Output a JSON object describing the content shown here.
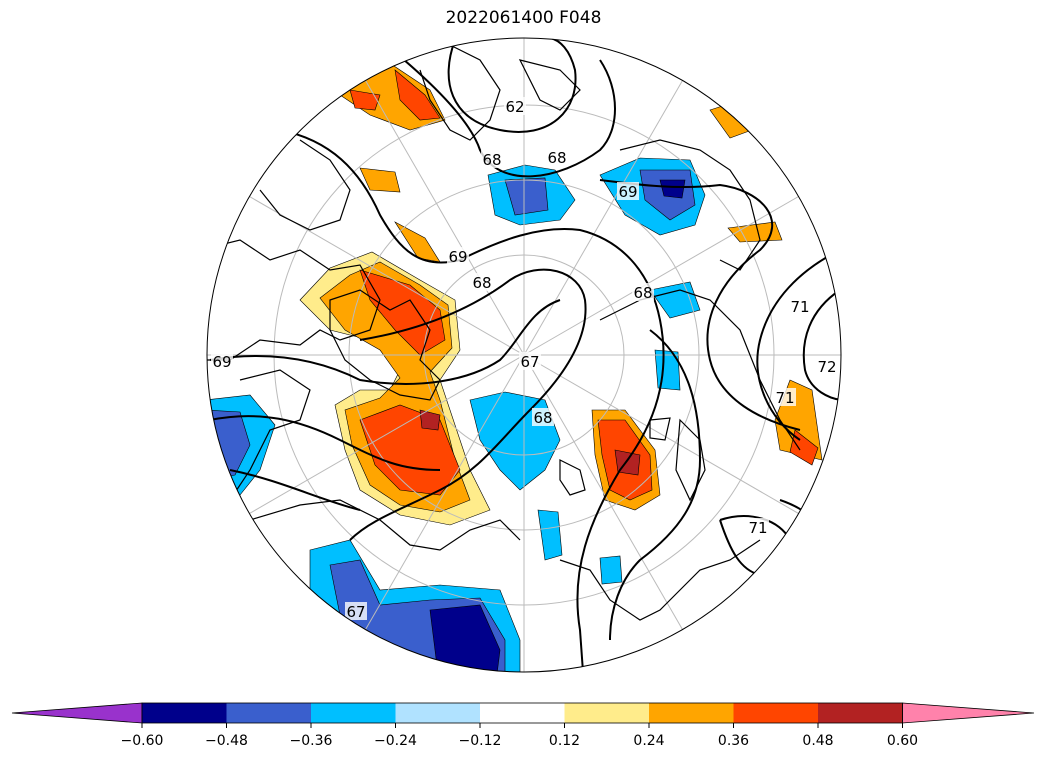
{
  "title": "2022061400 F048",
  "colorbar": {
    "orientation": "horizontal",
    "extend": "both",
    "levels": [
      -0.6,
      -0.48,
      -0.36,
      -0.24,
      -0.12,
      0.12,
      0.24,
      0.36,
      0.48,
      0.6
    ],
    "tick_labels": [
      "−0.60",
      "−0.48",
      "−0.36",
      "−0.24",
      "−0.12",
      "0.12",
      "0.24",
      "0.36",
      "0.48",
      "0.60"
    ],
    "colors": [
      "#9932CC",
      "#00008B",
      "#3A5FCD",
      "#00BFFF",
      "#B0E2FF",
      "#FFFFFF",
      "#FFEC8B",
      "#FFA500",
      "#FF4500",
      "#B22222",
      "#FF82AB"
    ]
  },
  "map": {
    "projection": "polar-stereographic-north",
    "boundary": "circle",
    "coastline_color": "#000000",
    "grid_color": "#bbbbbb",
    "contour_color": "#000000",
    "contour_labels": [
      "62",
      "68",
      "68",
      "69",
      "68",
      "68",
      "67",
      "68",
      "69",
      "71",
      "72",
      "71",
      "71",
      "67",
      "69"
    ]
  }
}
